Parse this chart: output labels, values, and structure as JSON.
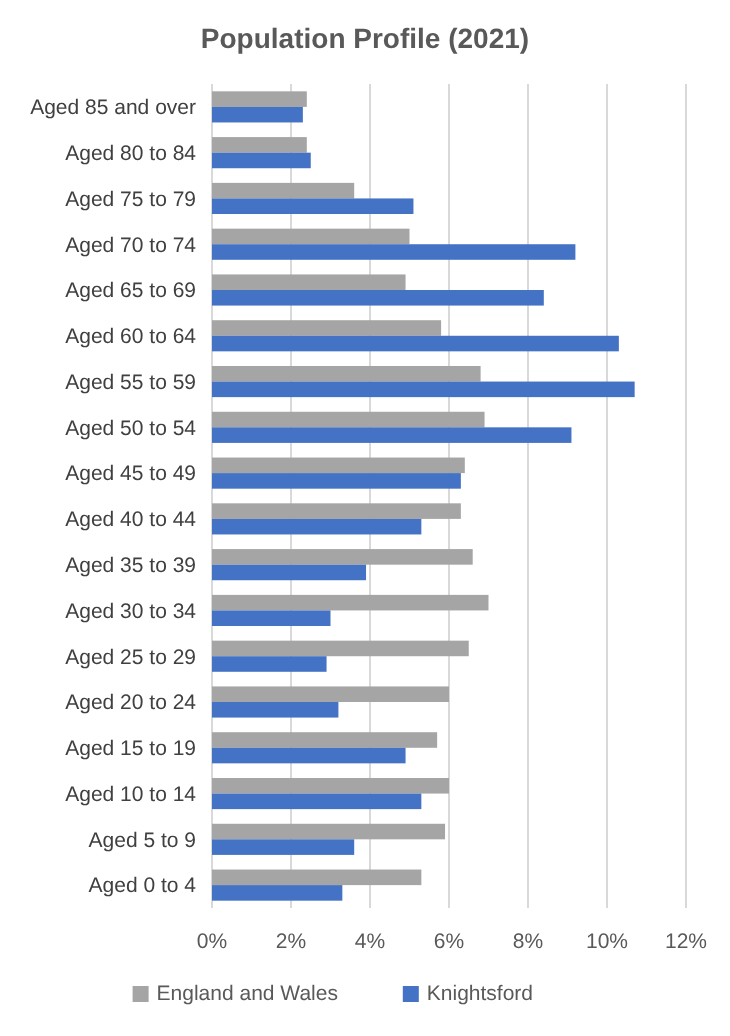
{
  "chart_data": {
    "type": "bar",
    "orientation": "horizontal",
    "title": "Population Profile (2021)",
    "categories": [
      "Aged 85 and over",
      "Aged 80 to 84",
      "Aged 75 to 79",
      "Aged 70 to 74",
      "Aged 65 to 69",
      "Aged 60 to 64",
      "Aged 55 to 59",
      "Aged 50 to 54",
      "Aged 45 to 49",
      "Aged 40 to 44",
      "Aged 35 to 39",
      "Aged 30 to 34",
      "Aged 25 to 29",
      "Aged 20 to 24",
      "Aged 15 to 19",
      "Aged 10 to 14",
      "Aged 5 to 9",
      "Aged 0 to 4"
    ],
    "series": [
      {
        "name": "England and Wales",
        "color": "#a5a5a5",
        "values": [
          2.4,
          2.4,
          3.6,
          5.0,
          4.9,
          5.8,
          6.8,
          6.9,
          6.4,
          6.3,
          6.6,
          7.0,
          6.5,
          6.0,
          5.7,
          6.0,
          5.9,
          5.3
        ]
      },
      {
        "name": "Knightsford",
        "color": "#4472c4",
        "values": [
          2.3,
          2.5,
          5.1,
          9.2,
          8.4,
          10.3,
          10.7,
          9.1,
          6.3,
          5.3,
          3.9,
          3.0,
          2.9,
          3.2,
          4.9,
          5.3,
          3.6,
          3.3
        ]
      }
    ],
    "xlim": [
      0,
      12
    ],
    "xticks": [
      {
        "value": 0,
        "label": "0%"
      },
      {
        "value": 2,
        "label": "2%"
      },
      {
        "value": 4,
        "label": "4%"
      },
      {
        "value": 6,
        "label": "6%"
      },
      {
        "value": 8,
        "label": "8%"
      },
      {
        "value": 10,
        "label": "10%"
      },
      {
        "value": 12,
        "label": "12%"
      }
    ],
    "grid": "x",
    "legend": "bottom"
  }
}
